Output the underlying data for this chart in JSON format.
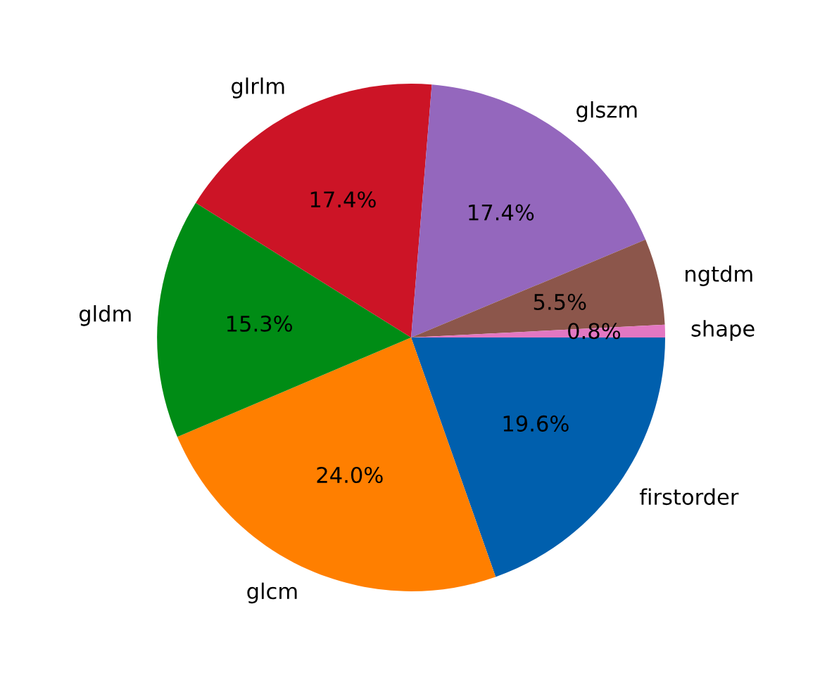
{
  "chart_data": {
    "type": "pie",
    "categories": [
      "firstorder",
      "glcm",
      "gldm",
      "glrlm",
      "glszm",
      "ngtdm",
      "shape"
    ],
    "values": [
      19.6,
      24.0,
      15.3,
      17.4,
      17.4,
      5.5,
      0.8
    ],
    "value_labels": [
      "19.6%",
      "24.0%",
      "15.3%",
      "17.4%",
      "17.4%",
      "5.5%",
      "0.8%"
    ],
    "colors": [
      "#005fad",
      "#ff7f00",
      "#008c15",
      "#cc1426",
      "#9467bd",
      "#8c564b",
      "#e377c2"
    ]
  }
}
